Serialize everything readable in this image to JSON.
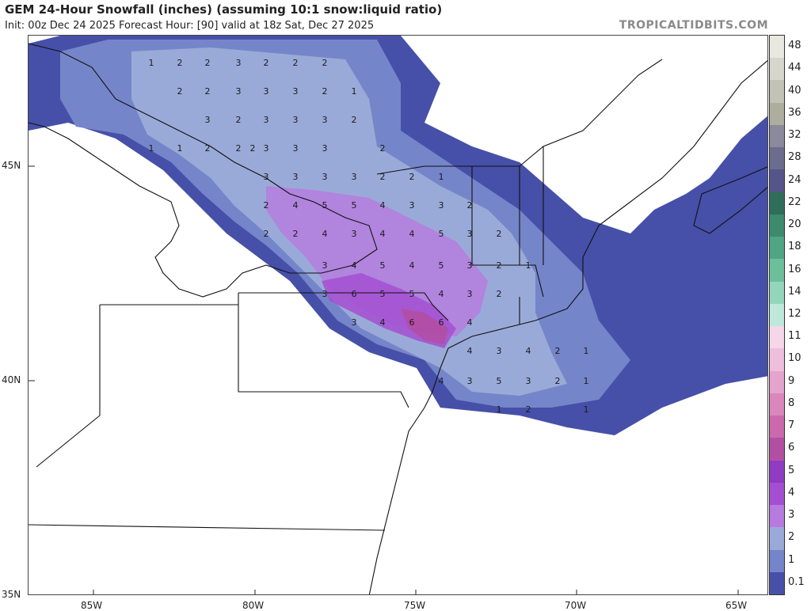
{
  "header": {
    "title": "GEM 24-Hour Snowfall (inches) (assuming 10:1 snow:liquid ratio)",
    "subtitle": "Init: 00z Dec 24 2025   Forecast Hour: [90]   valid at 18z Sat, Dec 27 2025",
    "credit": "TROPICALTIDBITS.COM"
  },
  "axes": {
    "lon_labels": [
      "85W",
      "80W",
      "75W",
      "70W",
      "65W"
    ],
    "lat_labels": [
      "45N",
      "40N",
      "35N"
    ]
  },
  "colorbar": {
    "labels": [
      "48",
      "44",
      "40",
      "36",
      "32",
      "28",
      "24",
      "22",
      "20",
      "18",
      "16",
      "14",
      "12",
      "11",
      "10",
      "9",
      "8",
      "7",
      "6",
      "5",
      "4",
      "3",
      "2",
      "1",
      "0.1"
    ],
    "colors": [
      "#e8e8e0",
      "#d6d6cc",
      "#c2c2b6",
      "#aeae9e",
      "#8a8a9c",
      "#6c6c8c",
      "#55558a",
      "#2f6e5a",
      "#3d8a6e",
      "#4fa584",
      "#6dbf9c",
      "#94d6bc",
      "#bde8da",
      "#f5d7e9",
      "#eebfdd",
      "#e4a4cd",
      "#d987bd",
      "#cc69ad",
      "#b34fa3",
      "#8f3cc2",
      "#a44fd1",
      "#b77be0",
      "#9aaad8",
      "#7585c9",
      "#4650a8"
    ]
  },
  "snow_values": [
    {
      "v": "1"
    },
    {
      "v": "2"
    },
    {
      "v": "2"
    },
    {
      "v": "3"
    },
    {
      "v": "2"
    },
    {
      "v": "2"
    },
    {
      "v": "2"
    },
    {
      "v": "2"
    },
    {
      "v": "2"
    },
    {
      "v": "3"
    },
    {
      "v": "3"
    },
    {
      "v": "3"
    },
    {
      "v": "2"
    },
    {
      "v": "1"
    },
    {
      "v": "3"
    },
    {
      "v": "2"
    },
    {
      "v": "3"
    },
    {
      "v": "3"
    },
    {
      "v": "3"
    },
    {
      "v": "2"
    },
    {
      "v": "1"
    },
    {
      "v": "1"
    },
    {
      "v": "2"
    },
    {
      "v": "2"
    },
    {
      "v": "2"
    },
    {
      "v": "3"
    },
    {
      "v": "3"
    },
    {
      "v": "3"
    },
    {
      "v": "2"
    },
    {
      "v": "3"
    },
    {
      "v": "3"
    },
    {
      "v": "3"
    },
    {
      "v": "3"
    },
    {
      "v": "2"
    },
    {
      "v": "2"
    },
    {
      "v": "1"
    },
    {
      "v": "2"
    },
    {
      "v": "4"
    },
    {
      "v": "5"
    },
    {
      "v": "5"
    },
    {
      "v": "4"
    },
    {
      "v": "3"
    },
    {
      "v": "3"
    },
    {
      "v": "2"
    },
    {
      "v": "2"
    },
    {
      "v": "2"
    },
    {
      "v": "4"
    },
    {
      "v": "3"
    },
    {
      "v": "4"
    },
    {
      "v": "4"
    },
    {
      "v": "5"
    },
    {
      "v": "3"
    },
    {
      "v": "2"
    },
    {
      "v": "3"
    },
    {
      "v": "4"
    },
    {
      "v": "5"
    },
    {
      "v": "4"
    },
    {
      "v": "5"
    },
    {
      "v": "3"
    },
    {
      "v": "2"
    },
    {
      "v": "1"
    },
    {
      "v": "3"
    },
    {
      "v": "6"
    },
    {
      "v": "5"
    },
    {
      "v": "5"
    },
    {
      "v": "4"
    },
    {
      "v": "3"
    },
    {
      "v": "2"
    },
    {
      "v": "3"
    },
    {
      "v": "4"
    },
    {
      "v": "6"
    },
    {
      "v": "6"
    },
    {
      "v": "4"
    },
    {
      "v": "4"
    },
    {
      "v": "3"
    },
    {
      "v": "4"
    },
    {
      "v": "2"
    },
    {
      "v": "1"
    },
    {
      "v": "4"
    },
    {
      "v": "3"
    },
    {
      "v": "5"
    },
    {
      "v": "3"
    },
    {
      "v": "2"
    },
    {
      "v": "1"
    },
    {
      "v": "1"
    },
    {
      "v": "2"
    },
    {
      "v": "1"
    }
  ]
}
